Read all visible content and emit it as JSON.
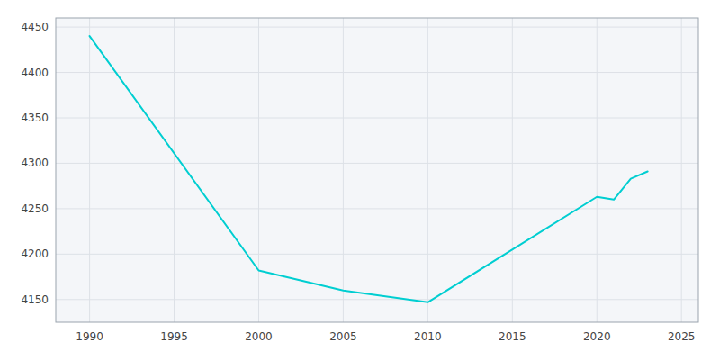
{
  "chart_data": {
    "type": "line",
    "x": [
      1990,
      2000,
      2005,
      2010,
      2020,
      2021,
      2022,
      2023
    ],
    "values": [
      4440,
      4182,
      4160,
      4147,
      4263,
      4260,
      4283,
      4291
    ],
    "color": "#00CED1",
    "xlim": [
      1988,
      2026
    ],
    "ylim": [
      4125,
      4460
    ],
    "xticks": [
      1990,
      1995,
      2000,
      2005,
      2010,
      2015,
      2020,
      2025
    ],
    "yticks": [
      4150,
      4200,
      4250,
      4300,
      4350,
      4400,
      4450
    ],
    "grid": true
  }
}
